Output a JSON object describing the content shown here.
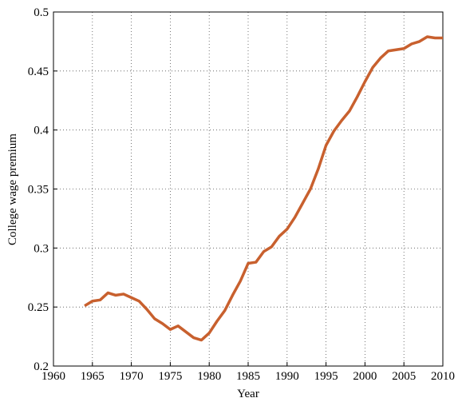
{
  "chart_data": {
    "type": "line",
    "xlabel": "Year",
    "ylabel": "College wage premium",
    "x": [
      1964,
      1965,
      1966,
      1967,
      1968,
      1969,
      1970,
      1971,
      1972,
      1973,
      1974,
      1975,
      1976,
      1977,
      1978,
      1979,
      1980,
      1981,
      1982,
      1983,
      1984,
      1985,
      1986,
      1987,
      1988,
      1989,
      1990,
      1991,
      1992,
      1993,
      1994,
      1995,
      1996,
      1997,
      1998,
      1999,
      2000,
      2001,
      2002,
      2003,
      2004,
      2005,
      2006,
      2007,
      2008,
      2009,
      2010
    ],
    "series": [
      {
        "color": "#c8602e",
        "values": [
          0.251,
          0.255,
          0.256,
          0.262,
          0.26,
          0.261,
          0.258,
          0.255,
          0.248,
          0.24,
          0.236,
          0.231,
          0.234,
          0.229,
          0.224,
          0.222,
          0.228,
          0.238,
          0.247,
          0.26,
          0.272,
          0.287,
          0.288,
          0.297,
          0.301,
          0.31,
          0.316,
          0.326,
          0.338,
          0.35,
          0.367,
          0.387,
          0.399,
          0.408,
          0.416,
          0.428,
          0.441,
          0.453,
          0.461,
          0.467,
          0.468,
          0.469,
          0.473,
          0.475,
          0.479,
          0.478,
          0.478
        ]
      }
    ],
    "xlim": [
      1960,
      2010
    ],
    "xticks": [
      1960,
      1965,
      1970,
      1975,
      1980,
      1985,
      1990,
      1995,
      2000,
      2005,
      2010
    ],
    "ylim": [
      0.2,
      0.5
    ],
    "yticks": [
      0.2,
      0.25,
      0.3,
      0.35,
      0.4,
      0.45,
      0.5
    ],
    "grid": true
  }
}
